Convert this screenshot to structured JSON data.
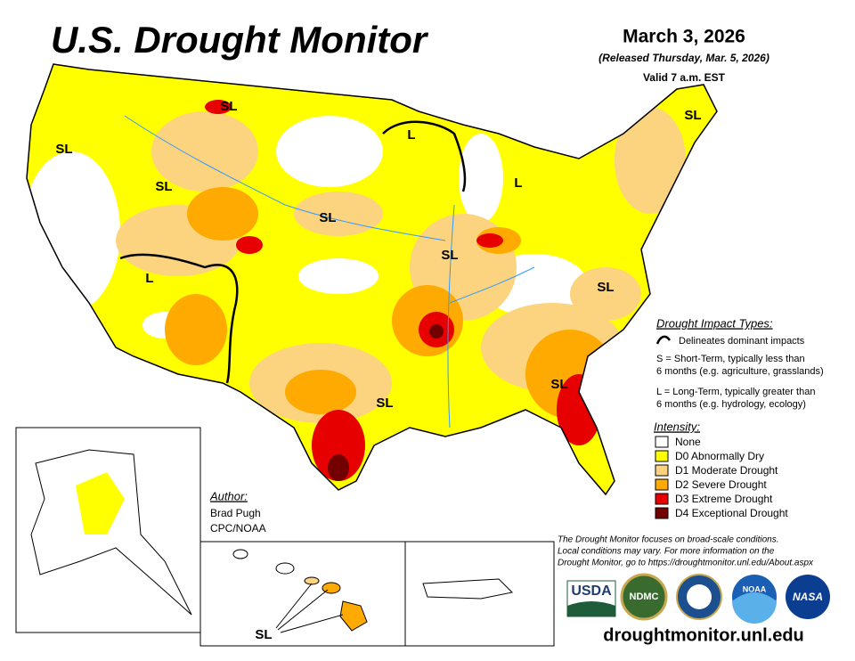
{
  "header": {
    "title": "U.S. Drought Monitor",
    "date": "March 3, 2026",
    "released": "(Released Thursday, Mar. 5, 2026)",
    "valid": "Valid 7 a.m. EST"
  },
  "impact_types": {
    "heading": "Drought Impact Types:",
    "line_label": "Delineates dominant impacts",
    "short_term": [
      "S = Short-Term, typically less than",
      "6 months (e.g. agriculture, grasslands)"
    ],
    "long_term": [
      "L = Long-Term, typically greater than",
      "6 months (e.g. hydrology, ecology)"
    ]
  },
  "intensity": {
    "heading": "Intensity:",
    "levels": [
      {
        "label": "None",
        "color": "#ffffff"
      },
      {
        "label": "D0 Abnormally Dry",
        "color": "#ffff00"
      },
      {
        "label": "D1 Moderate Drought",
        "color": "#fcd37f"
      },
      {
        "label": "D2 Severe Drought",
        "color": "#ffaa00"
      },
      {
        "label": "D3 Extreme Drought",
        "color": "#e60000"
      },
      {
        "label": "D4 Exceptional Drought",
        "color": "#730000"
      }
    ]
  },
  "author": {
    "heading": "Author:",
    "name": "Brad Pugh",
    "org": "CPC/NOAA"
  },
  "footnote": [
    "The Drought Monitor focuses on broad-scale conditions.",
    "Local conditions may vary. For more information on the",
    "Drought Monitor, go to https://droughtmonitor.unl.edu/About.aspx"
  ],
  "logos": [
    "USDA",
    "NDMC",
    "NOAA",
    "NASA"
  ],
  "website": "droughtmonitor.unl.edu",
  "map_labels": [
    "SL",
    "SL",
    "SL",
    "SL",
    "L",
    "L",
    "SL",
    "L",
    "SL",
    "SL",
    "SL",
    "SL",
    "SL"
  ]
}
